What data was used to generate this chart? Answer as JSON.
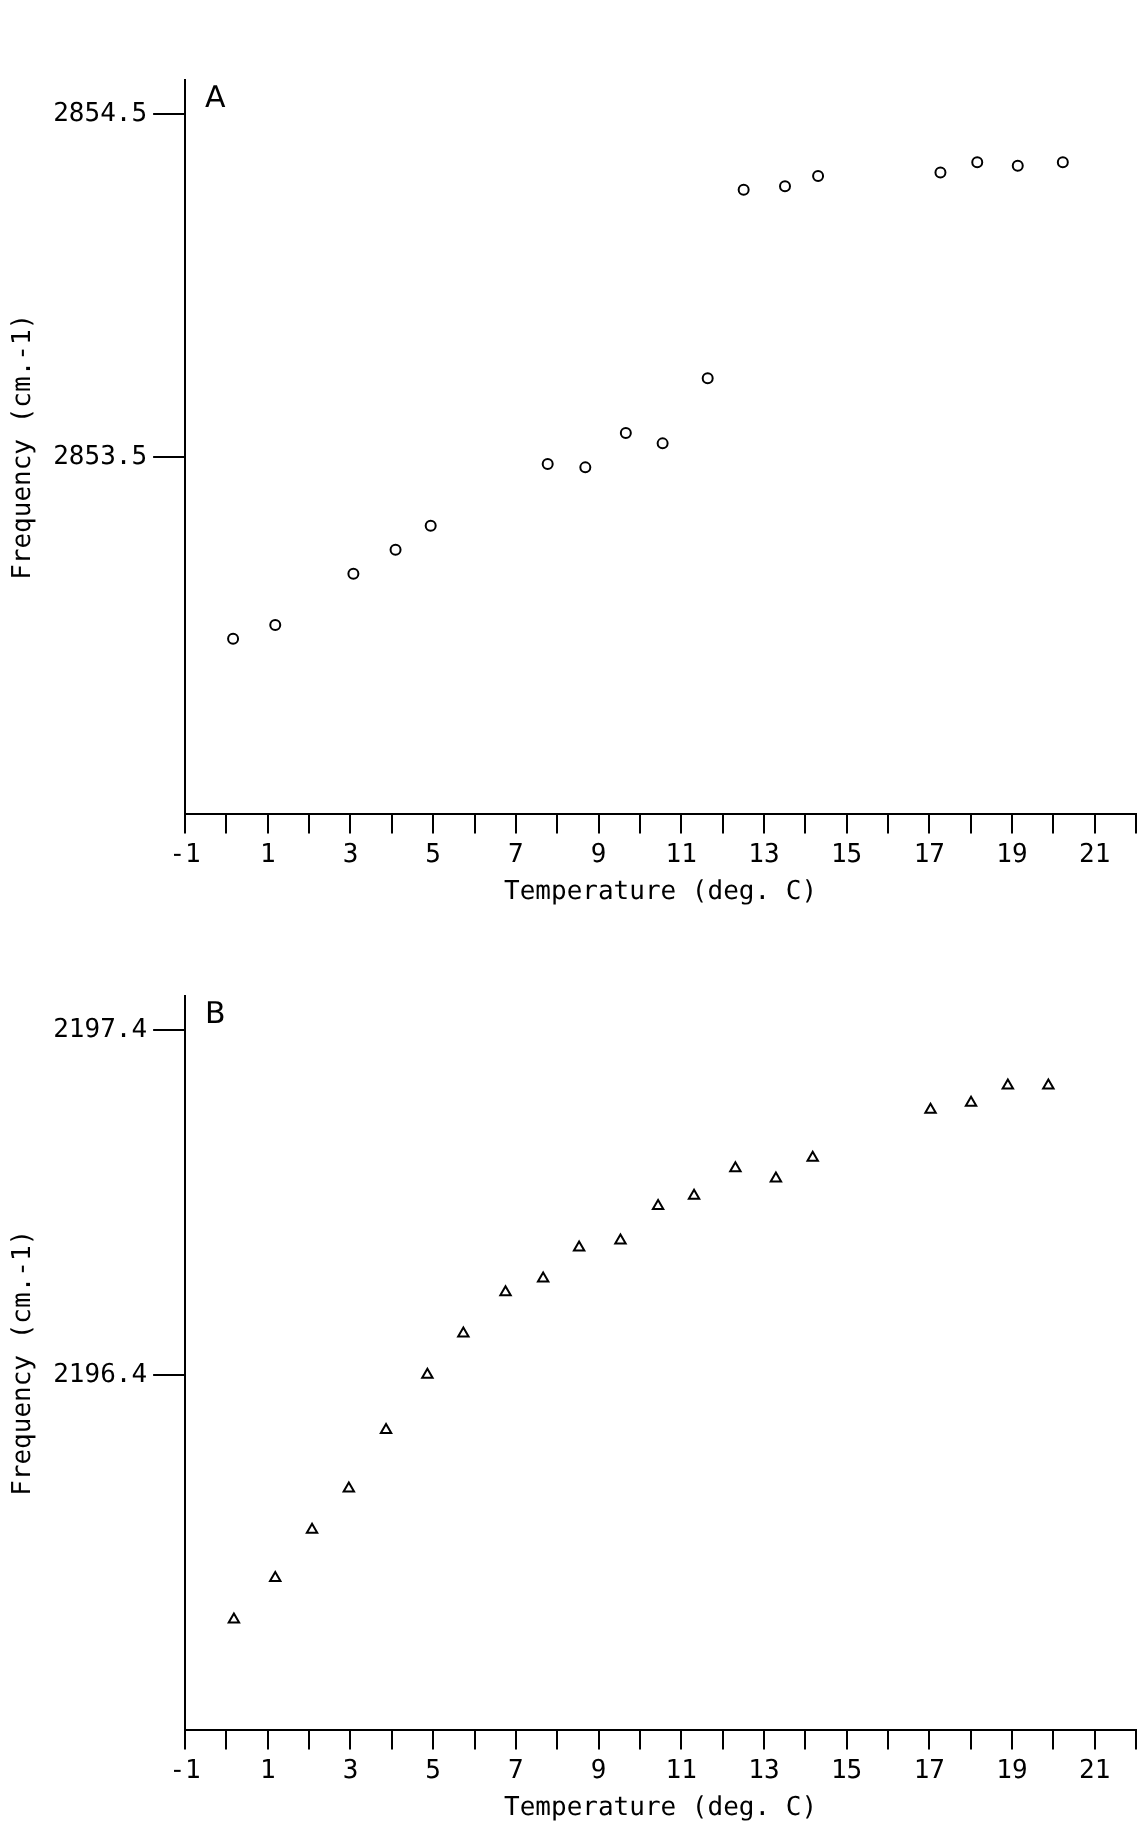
{
  "chart_data": [
    {
      "type": "scatter",
      "marker": "circle",
      "grid": false,
      "legend": false,
      "annotations": [
        "A"
      ],
      "xlabel": "Temperature (deg. C)",
      "ylabel": "Frequency (cm.-1)",
      "xlim": [
        -1,
        22
      ],
      "ylim": [
        2852.46,
        2854.6
      ],
      "xticks": [
        -1,
        {
          "value": 0,
          "label": null
        },
        1,
        {
          "value": 2,
          "label": null
        },
        3,
        {
          "value": 4,
          "label": null
        },
        5,
        {
          "value": 6,
          "label": null
        },
        7,
        {
          "value": 8,
          "label": null
        },
        9,
        {
          "value": 10,
          "label": null
        },
        11,
        {
          "value": 12,
          "label": null
        },
        13,
        {
          "value": 14,
          "label": null
        },
        15,
        {
          "value": 16,
          "label": null
        },
        17,
        {
          "value": 18,
          "label": null
        },
        19,
        {
          "value": 20,
          "label": null
        },
        21,
        {
          "value": 22,
          "label": null
        }
      ],
      "yticks": [
        2853.5,
        2854.5
      ],
      "series": [
        {
          "color": "#000000",
          "x": [
            0.16,
            1.18,
            3.07,
            4.09,
            4.94,
            7.77,
            8.68,
            9.66,
            10.55,
            11.64,
            12.51,
            13.51,
            14.31,
            17.27,
            18.16,
            19.14,
            20.23
          ],
          "values": [
            2852.97,
            2853.01,
            2853.16,
            2853.23,
            2853.3,
            2853.48,
            2853.47,
            2853.57,
            2853.54,
            2853.73,
            2854.28,
            2854.29,
            2854.32,
            2854.33,
            2854.36,
            2854.35,
            2854.36
          ]
        }
      ]
    },
    {
      "type": "scatter",
      "marker": "triangle",
      "grid": false,
      "legend": false,
      "annotations": [
        "B"
      ],
      "xlabel": "Temperature (deg. C)",
      "ylabel": "Frequency (cm.-1)",
      "xlim": [
        -1,
        22
      ],
      "ylim": [
        2195.37,
        2197.5
      ],
      "xticks": [
        -1,
        {
          "value": 0,
          "label": null
        },
        1,
        {
          "value": 2,
          "label": null
        },
        3,
        {
          "value": 4,
          "label": null
        },
        5,
        {
          "value": 6,
          "label": null
        },
        7,
        {
          "value": 8,
          "label": null
        },
        9,
        {
          "value": 10,
          "label": null
        },
        11,
        {
          "value": 12,
          "label": null
        },
        13,
        {
          "value": 14,
          "label": null
        },
        15,
        {
          "value": 16,
          "label": null
        },
        17,
        {
          "value": 18,
          "label": null
        },
        19,
        {
          "value": 20,
          "label": null
        },
        21,
        {
          "value": 22,
          "label": null
        }
      ],
      "yticks": [
        2196.4,
        2197.4
      ],
      "series": [
        {
          "color": "#000000",
          "x": [
            0.18,
            1.18,
            2.07,
            2.96,
            3.86,
            4.86,
            5.73,
            6.75,
            7.66,
            8.53,
            9.53,
            10.44,
            11.31,
            12.31,
            13.29,
            14.18,
            17.03,
            18.01,
            18.9,
            19.88
          ],
          "values": [
            2195.69,
            2195.81,
            2195.95,
            2196.07,
            2196.24,
            2196.4,
            2196.52,
            2196.64,
            2196.68,
            2196.77,
            2196.79,
            2196.89,
            2196.92,
            2197.0,
            2196.97,
            2197.03,
            2197.17,
            2197.19,
            2197.24,
            2197.24
          ]
        }
      ]
    }
  ]
}
